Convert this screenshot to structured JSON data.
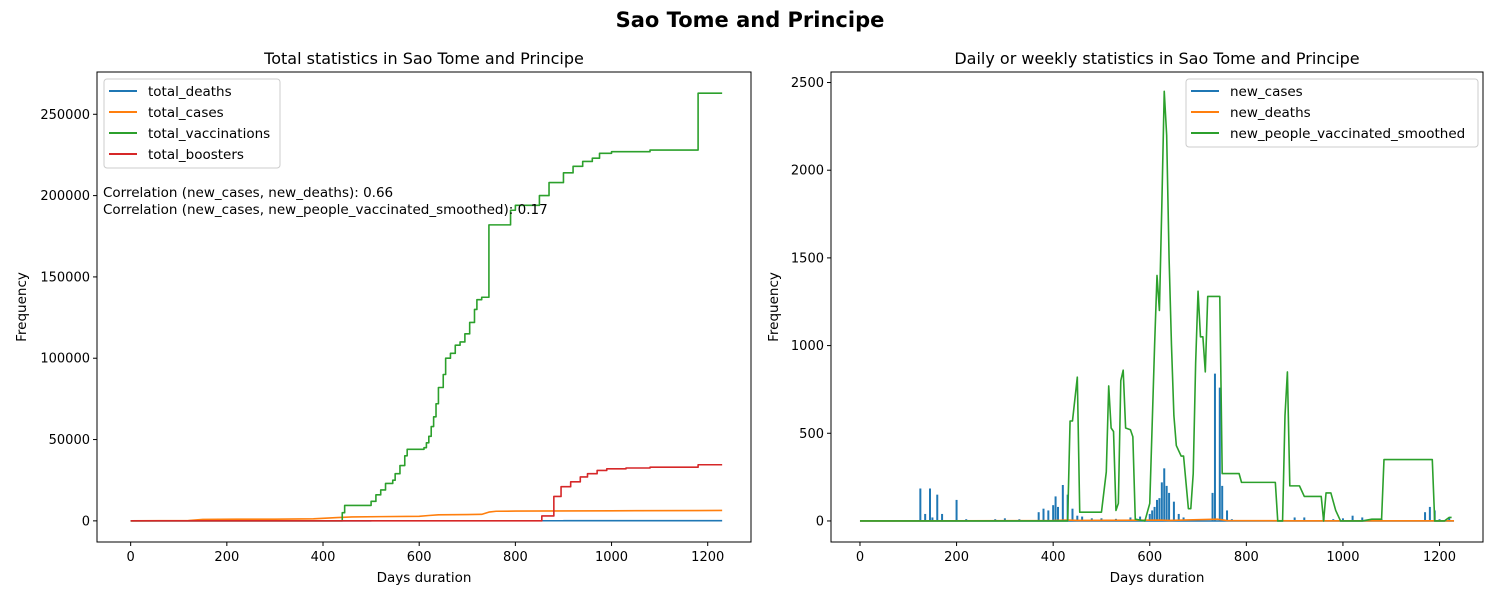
{
  "figure": {
    "suptitle": "Sao Tome and Principe"
  },
  "chart_data": [
    {
      "type": "line",
      "title": "Total statistics in Sao Tome and Principe",
      "xlabel": "Days duration",
      "ylabel": "Frequency",
      "xlim": [
        -70,
        1290
      ],
      "ylim": [
        -13000,
        276000
      ],
      "xticks": [
        0,
        200,
        400,
        600,
        800,
        1000,
        1200
      ],
      "yticks": [
        0,
        50000,
        100000,
        150000,
        200000,
        250000
      ],
      "legend_position": "upper-left",
      "annotations": [
        "Correlation (new_cases, new_deaths): 0.66",
        "Correlation (new_cases, new_people_vaccinated_smoothed): 0.17"
      ],
      "series": [
        {
          "name": "total_deaths",
          "color": "#1f77b4",
          "step": true,
          "points": [
            [
              0,
              0
            ],
            [
              200,
              20
            ],
            [
              500,
              60
            ],
            [
              700,
              75
            ],
            [
              900,
              78
            ],
            [
              1230,
              78
            ]
          ]
        },
        {
          "name": "total_cases",
          "color": "#ff7f0e",
          "step": false,
          "points": [
            [
              0,
              0
            ],
            [
              120,
              200
            ],
            [
              150,
              900
            ],
            [
              220,
              1000
            ],
            [
              300,
              1050
            ],
            [
              380,
              1250
            ],
            [
              430,
              2000
            ],
            [
              460,
              2400
            ],
            [
              520,
              2600
            ],
            [
              600,
              2800
            ],
            [
              620,
              3300
            ],
            [
              640,
              3700
            ],
            [
              700,
              3900
            ],
            [
              730,
              4000
            ],
            [
              745,
              5400
            ],
            [
              760,
              5900
            ],
            [
              800,
              6000
            ],
            [
              900,
              6100
            ],
            [
              1000,
              6200
            ],
            [
              1180,
              6300
            ],
            [
              1230,
              6400
            ]
          ]
        },
        {
          "name": "total_vaccinations",
          "color": "#2ca02c",
          "step": true,
          "points": [
            [
              0,
              0
            ],
            [
              430,
              0
            ],
            [
              440,
              5000
            ],
            [
              445,
              9500
            ],
            [
              500,
              12000
            ],
            [
              510,
              16000
            ],
            [
              520,
              19000
            ],
            [
              530,
              23000
            ],
            [
              545,
              25000
            ],
            [
              550,
              29000
            ],
            [
              560,
              34000
            ],
            [
              570,
              40000
            ],
            [
              575,
              44000
            ],
            [
              610,
              45000
            ],
            [
              615,
              48000
            ],
            [
              620,
              52000
            ],
            [
              625,
              58000
            ],
            [
              630,
              64000
            ],
            [
              635,
              72000
            ],
            [
              640,
              82000
            ],
            [
              650,
              90000
            ],
            [
              655,
              100000
            ],
            [
              665,
              103000
            ],
            [
              675,
              108000
            ],
            [
              685,
              110000
            ],
            [
              695,
              115000
            ],
            [
              705,
              122000
            ],
            [
              715,
              130000
            ],
            [
              720,
              136000
            ],
            [
              730,
              137500
            ],
            [
              745,
              182000
            ],
            [
              790,
              191000
            ],
            [
              800,
              194000
            ],
            [
              850,
              200000
            ],
            [
              870,
              208000
            ],
            [
              900,
              214000
            ],
            [
              920,
              218000
            ],
            [
              940,
              221000
            ],
            [
              960,
              223000
            ],
            [
              975,
              226000
            ],
            [
              1000,
              227000
            ],
            [
              1080,
              228000
            ],
            [
              1180,
              263000
            ],
            [
              1230,
              263000
            ]
          ]
        },
        {
          "name": "total_boosters",
          "color": "#d62728",
          "step": true,
          "points": [
            [
              0,
              0
            ],
            [
              850,
              0
            ],
            [
              855,
              3000
            ],
            [
              880,
              15000
            ],
            [
              895,
              21000
            ],
            [
              915,
              24000
            ],
            [
              935,
              27000
            ],
            [
              950,
              29000
            ],
            [
              970,
              31000
            ],
            [
              990,
              32000
            ],
            [
              1030,
              32500
            ],
            [
              1080,
              33000
            ],
            [
              1180,
              34500
            ],
            [
              1230,
              34500
            ]
          ]
        }
      ]
    },
    {
      "type": "line",
      "title": "Daily or weekly statistics in Sao Tome and Principe",
      "xlabel": "Days duration",
      "ylabel": "Frequency",
      "xlim": [
        -60,
        1290
      ],
      "ylim": [
        -120,
        2560
      ],
      "xticks": [
        0,
        200,
        400,
        600,
        800,
        1000,
        1200
      ],
      "yticks": [
        0,
        500,
        1000,
        1500,
        2000,
        2500
      ],
      "legend_position": "upper-right",
      "series": [
        {
          "name": "new_cases",
          "color": "#1f77b4",
          "spikes": [
            [
              125,
              185
            ],
            [
              135,
              40
            ],
            [
              145,
              185
            ],
            [
              150,
              20
            ],
            [
              160,
              150
            ],
            [
              170,
              40
            ],
            [
              200,
              120
            ],
            [
              220,
              10
            ],
            [
              280,
              10
            ],
            [
              300,
              15
            ],
            [
              330,
              10
            ],
            [
              370,
              50
            ],
            [
              380,
              70
            ],
            [
              390,
              60
            ],
            [
              400,
              90
            ],
            [
              405,
              140
            ],
            [
              410,
              80
            ],
            [
              420,
              205
            ],
            [
              430,
              150
            ],
            [
              440,
              70
            ],
            [
              450,
              30
            ],
            [
              460,
              25
            ],
            [
              480,
              15
            ],
            [
              500,
              15
            ],
            [
              530,
              12
            ],
            [
              560,
              20
            ],
            [
              580,
              25
            ],
            [
              600,
              40
            ],
            [
              605,
              60
            ],
            [
              610,
              80
            ],
            [
              615,
              120
            ],
            [
              620,
              130
            ],
            [
              625,
              220
            ],
            [
              630,
              300
            ],
            [
              635,
              200
            ],
            [
              640,
              160
            ],
            [
              650,
              110
            ],
            [
              660,
              40
            ],
            [
              670,
              20
            ],
            [
              730,
              160
            ],
            [
              735,
              840
            ],
            [
              745,
              760
            ],
            [
              750,
              200
            ],
            [
              760,
              60
            ],
            [
              770,
              10
            ],
            [
              900,
              20
            ],
            [
              920,
              20
            ],
            [
              960,
              30
            ],
            [
              980,
              10
            ],
            [
              1000,
              15
            ],
            [
              1020,
              30
            ],
            [
              1040,
              20
            ],
            [
              1080,
              10
            ],
            [
              1170,
              50
            ],
            [
              1180,
              80
            ],
            [
              1190,
              60
            ],
            [
              1200,
              10
            ],
            [
              1220,
              20
            ]
          ]
        },
        {
          "name": "new_deaths",
          "color": "#ff7f0e",
          "points": [
            [
              0,
              0
            ],
            [
              400,
              2
            ],
            [
              430,
              5
            ],
            [
              450,
              3
            ],
            [
              620,
              5
            ],
            [
              640,
              3
            ],
            [
              740,
              10
            ],
            [
              760,
              2
            ],
            [
              900,
              1
            ],
            [
              1230,
              1
            ]
          ]
        },
        {
          "name": "new_people_vaccinated_smoothed",
          "color": "#2ca02c",
          "points": [
            [
              0,
              0
            ],
            [
              430,
              0
            ],
            [
              435,
              570
            ],
            [
              440,
              570
            ],
            [
              450,
              820
            ],
            [
              455,
              50
            ],
            [
              500,
              50
            ],
            [
              510,
              280
            ],
            [
              515,
              770
            ],
            [
              520,
              530
            ],
            [
              525,
              510
            ],
            [
              530,
              60
            ],
            [
              535,
              100
            ],
            [
              540,
              800
            ],
            [
              545,
              860
            ],
            [
              550,
              530
            ],
            [
              560,
              520
            ],
            [
              565,
              480
            ],
            [
              570,
              10
            ],
            [
              590,
              0
            ],
            [
              600,
              100
            ],
            [
              610,
              1000
            ],
            [
              615,
              1400
            ],
            [
              620,
              1200
            ],
            [
              625,
              1800
            ],
            [
              630,
              2450
            ],
            [
              635,
              2200
            ],
            [
              640,
              1500
            ],
            [
              645,
              1000
            ],
            [
              650,
              600
            ],
            [
              655,
              430
            ],
            [
              665,
              370
            ],
            [
              670,
              370
            ],
            [
              680,
              70
            ],
            [
              685,
              70
            ],
            [
              690,
              270
            ],
            [
              695,
              900
            ],
            [
              700,
              1310
            ],
            [
              705,
              1050
            ],
            [
              710,
              1050
            ],
            [
              715,
              850
            ],
            [
              720,
              1280
            ],
            [
              745,
              1280
            ],
            [
              750,
              270
            ],
            [
              785,
              270
            ],
            [
              790,
              220
            ],
            [
              860,
              220
            ],
            [
              865,
              0
            ],
            [
              875,
              0
            ],
            [
              880,
              600
            ],
            [
              885,
              850
            ],
            [
              890,
              200
            ],
            [
              910,
              200
            ],
            [
              920,
              140
            ],
            [
              955,
              140
            ],
            [
              960,
              0
            ],
            [
              965,
              160
            ],
            [
              975,
              160
            ],
            [
              985,
              60
            ],
            [
              995,
              0
            ],
            [
              1040,
              0
            ],
            [
              1060,
              10
            ],
            [
              1080,
              10
            ],
            [
              1085,
              350
            ],
            [
              1185,
              350
            ],
            [
              1190,
              0
            ],
            [
              1210,
              0
            ],
            [
              1220,
              20
            ],
            [
              1225,
              20
            ]
          ]
        }
      ]
    }
  ]
}
